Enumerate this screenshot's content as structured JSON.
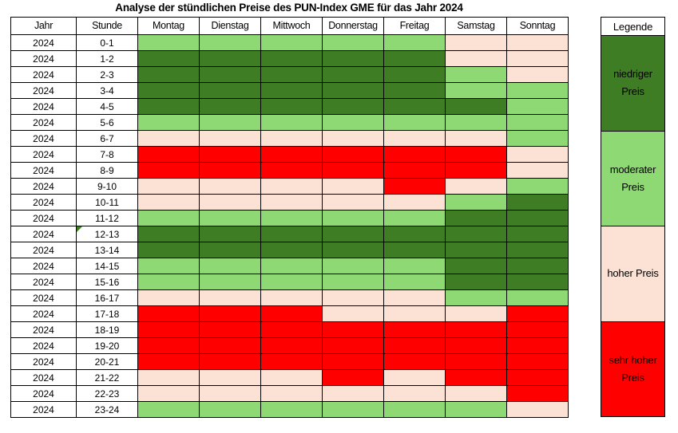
{
  "title": "Analyse der stündlichen Preise des PUN-Index GME für das Jahr 2024",
  "table": {
    "columns": [
      "Jahr",
      "Stunde",
      "Montag",
      "Dienstag",
      "Mittwoch",
      "Donnerstag",
      "Freitag",
      "Samstag",
      "Sonntag"
    ],
    "year_value": "2024",
    "note_marker_hour": "12-13"
  },
  "legend": {
    "header": "Legende",
    "items": [
      {
        "key": "low",
        "label": "niedriger Preis",
        "color": "#3E7D23",
        "text_color": "#000000"
      },
      {
        "key": "mod",
        "label": "moderater Preis",
        "color": "#8ED973",
        "text_color": "#000000"
      },
      {
        "key": "high",
        "label": "hoher Preis",
        "color": "#FBE2D5",
        "text_color": "#000000"
      },
      {
        "key": "vhigh",
        "label": "sehr hoher Preis",
        "color": "#FF0000",
        "text_color": "#000000"
      }
    ]
  },
  "chart_data": {
    "type": "heatmap",
    "title": "Analyse der stündlichen Preise des PUN-Index GME für das Jahr 2024",
    "year": "2024",
    "x_categories": [
      "Montag",
      "Dienstag",
      "Mittwoch",
      "Donnerstag",
      "Freitag",
      "Samstag",
      "Sonntag"
    ],
    "y_categories": [
      "0-1",
      "1-2",
      "2-3",
      "3-4",
      "4-5",
      "5-6",
      "6-7",
      "7-8",
      "8-9",
      "9-10",
      "10-11",
      "11-12",
      "12-13",
      "13-14",
      "14-15",
      "15-16",
      "16-17",
      "17-18",
      "18-19",
      "19-20",
      "20-21",
      "21-22",
      "22-23",
      "23-24"
    ],
    "levels": {
      "low": "niedriger Preis",
      "mod": "moderater Preis",
      "high": "hoher Preis",
      "vhigh": "sehr hoher Preis"
    },
    "level_colors": {
      "low": "#3E7D23",
      "mod": "#8ED973",
      "high": "#FBE2D5",
      "vhigh": "#FF0000"
    },
    "legend_position": "right",
    "values": [
      [
        "mod",
        "mod",
        "mod",
        "mod",
        "mod",
        "high",
        "high"
      ],
      [
        "low",
        "low",
        "low",
        "low",
        "low",
        "high",
        "high"
      ],
      [
        "low",
        "low",
        "low",
        "low",
        "low",
        "mod",
        "high"
      ],
      [
        "low",
        "low",
        "low",
        "low",
        "low",
        "mod",
        "mod"
      ],
      [
        "low",
        "low",
        "low",
        "low",
        "low",
        "low",
        "mod"
      ],
      [
        "mod",
        "mod",
        "mod",
        "mod",
        "mod",
        "mod",
        "mod"
      ],
      [
        "high",
        "high",
        "high",
        "high",
        "high",
        "high",
        "mod"
      ],
      [
        "vhigh",
        "vhigh",
        "vhigh",
        "vhigh",
        "vhigh",
        "vhigh",
        "high"
      ],
      [
        "vhigh",
        "vhigh",
        "vhigh",
        "vhigh",
        "vhigh",
        "vhigh",
        "high"
      ],
      [
        "high",
        "high",
        "high",
        "high",
        "vhigh",
        "high",
        "mod"
      ],
      [
        "high",
        "high",
        "high",
        "high",
        "high",
        "mod",
        "low"
      ],
      [
        "mod",
        "mod",
        "mod",
        "mod",
        "mod",
        "low",
        "low"
      ],
      [
        "low",
        "low",
        "low",
        "low",
        "low",
        "low",
        "low"
      ],
      [
        "low",
        "low",
        "low",
        "low",
        "low",
        "low",
        "low"
      ],
      [
        "mod",
        "mod",
        "mod",
        "mod",
        "mod",
        "low",
        "low"
      ],
      [
        "mod",
        "mod",
        "mod",
        "mod",
        "mod",
        "low",
        "low"
      ],
      [
        "high",
        "high",
        "high",
        "high",
        "high",
        "mod",
        "mod"
      ],
      [
        "vhigh",
        "vhigh",
        "vhigh",
        "high",
        "high",
        "high",
        "vhigh"
      ],
      [
        "vhigh",
        "vhigh",
        "vhigh",
        "vhigh",
        "vhigh",
        "vhigh",
        "vhigh"
      ],
      [
        "vhigh",
        "vhigh",
        "vhigh",
        "vhigh",
        "vhigh",
        "vhigh",
        "vhigh"
      ],
      [
        "vhigh",
        "vhigh",
        "vhigh",
        "vhigh",
        "vhigh",
        "vhigh",
        "vhigh"
      ],
      [
        "high",
        "high",
        "high",
        "vhigh",
        "high",
        "vhigh",
        "vhigh"
      ],
      [
        "high",
        "high",
        "high",
        "high",
        "high",
        "high",
        "vhigh"
      ],
      [
        "mod",
        "mod",
        "mod",
        "mod",
        "mod",
        "mod",
        "high"
      ]
    ]
  }
}
